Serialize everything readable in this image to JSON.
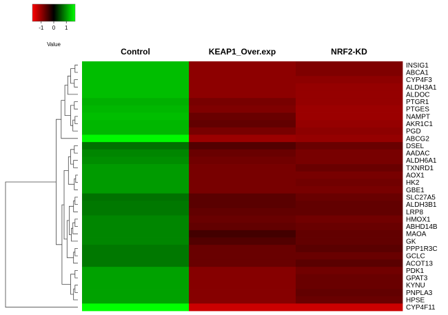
{
  "chart_data": {
    "type": "heatmap",
    "color_key": {
      "title": "Value",
      "ticks": [
        "-1",
        "0",
        "1"
      ],
      "low_color": "#ff0000",
      "mid_color": "#000000",
      "high_color": "#00ff00"
    },
    "columns": [
      "Control",
      "KEAP1_Over.exp",
      "NRF2-KD"
    ],
    "rows": [
      "INSIG1",
      "ABCA1",
      "CYP4F3",
      "ALDH3A1",
      "ALDOC",
      "PTGR1",
      "PTGES",
      "NAMPT",
      "AKR1C1",
      "PGD",
      "ABCG2",
      "DSEL",
      "AADAC",
      "ALDH6A1",
      "TXNRD1",
      "AOX1",
      "HK2",
      "GBE1",
      "SLC27A5",
      "ALDH3B1",
      "LRP8",
      "HMOX1",
      "ABHD14B",
      "MAOA",
      "GK",
      "PPP1R3C",
      "GCLC",
      "ACOT13",
      "PDK1",
      "GPAT3",
      "KYNU",
      "PNPLA3",
      "HPSE",
      "CYP4F11"
    ],
    "values": [
      [
        1.2,
        -0.85,
        -0.75
      ],
      [
        1.2,
        -0.85,
        -0.75
      ],
      [
        1.2,
        -0.85,
        -0.85
      ],
      [
        1.2,
        -0.85,
        -0.9
      ],
      [
        1.2,
        -0.85,
        -0.9
      ],
      [
        1.1,
        -0.7,
        -0.9
      ],
      [
        1.15,
        -0.75,
        -0.95
      ],
      [
        1.2,
        -0.6,
        -0.95
      ],
      [
        1.15,
        -0.55,
        -0.9
      ],
      [
        1.15,
        -0.7,
        -0.85
      ],
      [
        1.65,
        -0.95,
        -0.9
      ],
      [
        0.65,
        -0.45,
        -0.6
      ],
      [
        0.8,
        -0.6,
        -0.7
      ],
      [
        0.85,
        -0.65,
        -0.7
      ],
      [
        0.95,
        -0.7,
        -0.6
      ],
      [
        0.95,
        -0.7,
        -0.7
      ],
      [
        0.95,
        -0.7,
        -0.65
      ],
      [
        0.95,
        -0.7,
        -0.7
      ],
      [
        0.65,
        -0.5,
        -0.6
      ],
      [
        0.7,
        -0.5,
        -0.55
      ],
      [
        0.7,
        -0.55,
        -0.55
      ],
      [
        0.8,
        -0.6,
        -0.65
      ],
      [
        0.8,
        -0.55,
        -0.6
      ],
      [
        0.8,
        -0.35,
        -0.55
      ],
      [
        0.8,
        -0.45,
        -0.55
      ],
      [
        0.7,
        -0.6,
        -0.5
      ],
      [
        0.7,
        -0.6,
        -0.6
      ],
      [
        0.7,
        -0.6,
        -0.5
      ],
      [
        1.0,
        -0.8,
        -0.65
      ],
      [
        1.0,
        -0.8,
        -0.6
      ],
      [
        1.0,
        -0.8,
        -0.6
      ],
      [
        1.0,
        -0.8,
        -0.55
      ],
      [
        1.0,
        -0.8,
        -0.6
      ],
      [
        1.7,
        -1.3,
        -1.3
      ]
    ]
  }
}
